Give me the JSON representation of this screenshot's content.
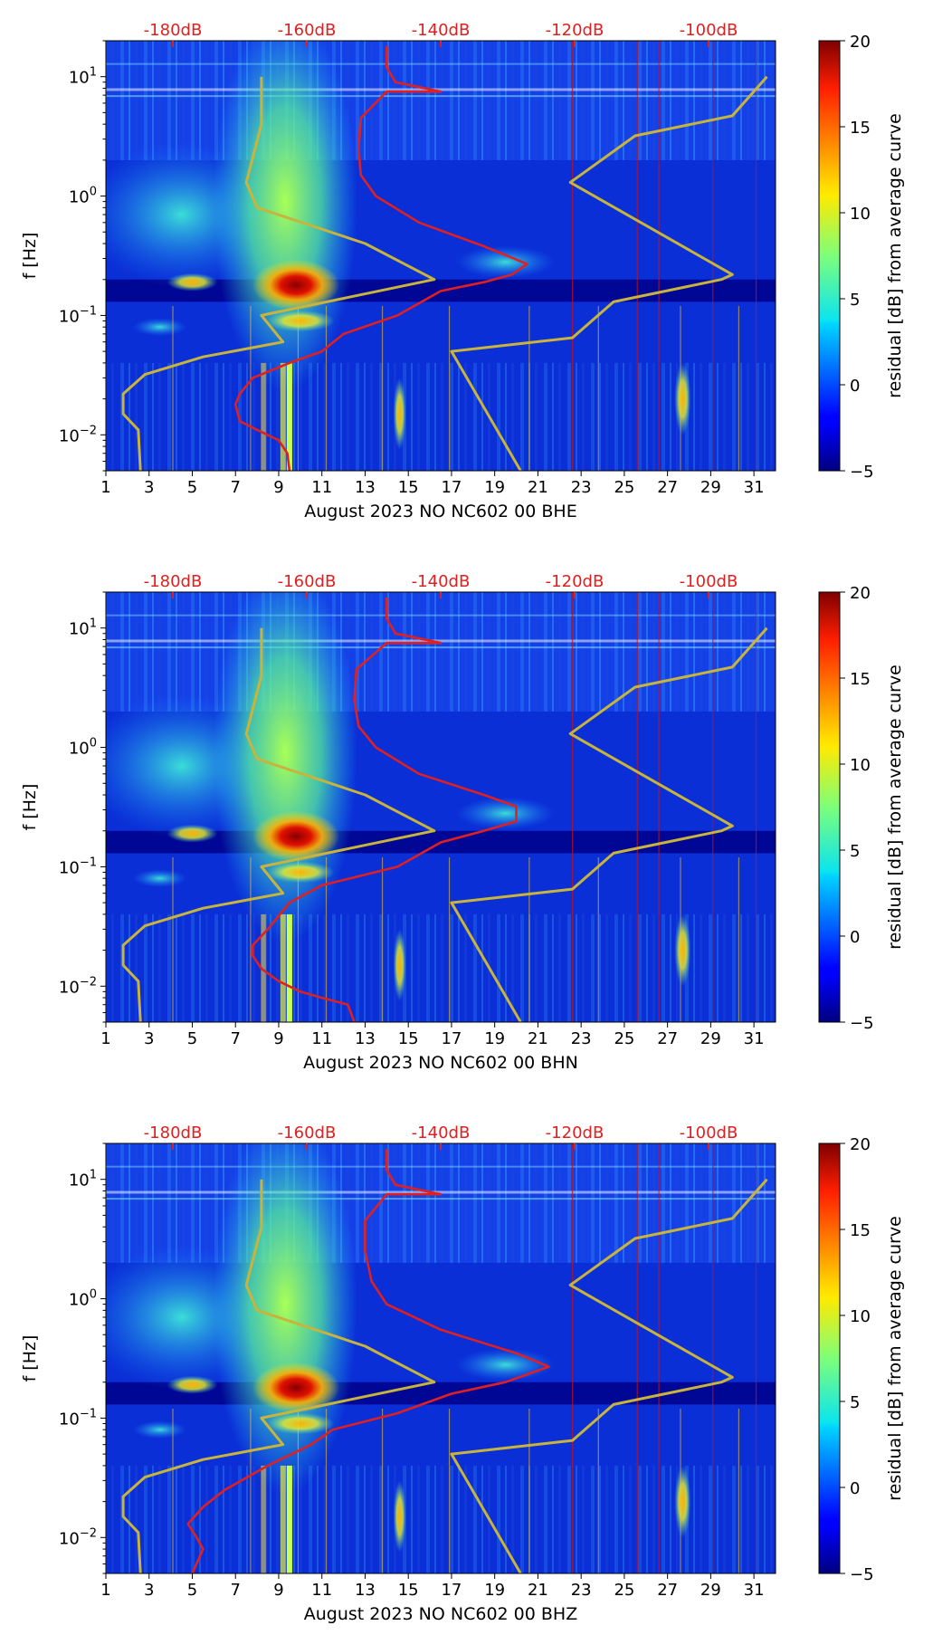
{
  "figure": {
    "top_axis_labels": [
      "-180dB",
      "-160dB",
      "-140dB",
      "-120dB",
      "-100dB"
    ],
    "x_ticks": [
      "1",
      "3",
      "5",
      "7",
      "9",
      "11",
      "13",
      "15",
      "17",
      "19",
      "21",
      "23",
      "25",
      "27",
      "29",
      "31"
    ],
    "colorbar_label": "residual [dB] from average curve",
    "colorbar_ticks": [
      "20",
      "15",
      "10",
      "5",
      "0",
      "−5"
    ],
    "ylabel": "f [Hz]"
  },
  "chart_data": [
    {
      "type": "heatmap",
      "title": "",
      "xlabel": "August 2023 NO NC602 00 BHE",
      "ylabel": "f [Hz]",
      "xlim": [
        1,
        32
      ],
      "ylim": [
        0.005,
        20
      ],
      "yscale": "log",
      "y_ticks": [
        {
          "base": "10",
          "exp": "−2",
          "value": 0.01
        },
        {
          "base": "10",
          "exp": "−1",
          "value": 0.1
        },
        {
          "base": "10",
          "exp": "0",
          "value": 1
        },
        {
          "base": "10",
          "exp": "1",
          "value": 10
        }
      ],
      "top_axis": {
        "labels": [
          "-180dB",
          "-160dB",
          "-140dB",
          "-120dB",
          "-100dB"
        ],
        "values": [
          -180,
          -160,
          -140,
          -120,
          -100
        ]
      },
      "colorbar": {
        "label": "residual [dB] from average curve",
        "range": [
          -5,
          20
        ],
        "ticks": [
          20,
          15,
          10,
          5,
          0,
          -5
        ]
      },
      "series": [
        {
          "name": "NLNM/NHNM model bounds",
          "color": "#c8b43c",
          "points": [
            [
              2.6,
              0.005
            ],
            [
              2.5,
              0.011
            ],
            [
              1.8,
              0.015
            ],
            [
              1.8,
              0.022
            ],
            [
              2.8,
              0.032
            ],
            [
              5.5,
              0.045
            ],
            [
              9.2,
              0.06
            ],
            [
              8.2,
              0.1
            ],
            [
              16.2,
              0.2
            ],
            [
              13,
              0.4
            ],
            [
              8,
              0.8
            ],
            [
              7.5,
              1.3
            ],
            [
              8.2,
              4
            ],
            [
              8.2,
              10
            ]
          ]
        },
        {
          "name": "NLNM/NHNM model bounds (upper)",
          "color": "#c8b43c",
          "points": [
            [
              20.2,
              0.005
            ],
            [
              17,
              0.05
            ],
            [
              22.6,
              0.065
            ],
            [
              24.5,
              0.13
            ],
            [
              29.5,
              0.2
            ],
            [
              30,
              0.22
            ],
            [
              22.5,
              1.3
            ],
            [
              25.5,
              3.2
            ],
            [
              30,
              4.7
            ],
            [
              31.6,
              10
            ]
          ]
        },
        {
          "name": "median PSD [dB]",
          "color": "#e02020",
          "points": [
            [
              9.5,
              0.005
            ],
            [
              9.4,
              0.007
            ],
            [
              9,
              0.009
            ],
            [
              8,
              0.011
            ],
            [
              7.2,
              0.013
            ],
            [
              7,
              0.018
            ],
            [
              7.2,
              0.022
            ],
            [
              7.8,
              0.03
            ],
            [
              9.5,
              0.04
            ],
            [
              11,
              0.05
            ],
            [
              12,
              0.07
            ],
            [
              14.5,
              0.1
            ],
            [
              16.5,
              0.16
            ],
            [
              18.5,
              0.19
            ],
            [
              19.8,
              0.22
            ],
            [
              20.5,
              0.27
            ],
            [
              18.5,
              0.38
            ],
            [
              15.5,
              0.6
            ],
            [
              13.5,
              1.0
            ],
            [
              12.8,
              1.5
            ],
            [
              12.7,
              2.5
            ],
            [
              12.8,
              4.5
            ],
            [
              14,
              7.5
            ],
            [
              16.5,
              7.5
            ],
            [
              14.4,
              9
            ],
            [
              14,
              12
            ],
            [
              14,
              18
            ]
          ]
        }
      ]
    },
    {
      "type": "heatmap",
      "title": "",
      "xlabel": "August 2023 NO NC602 00 BHN",
      "ylabel": "f [Hz]",
      "xlim": [
        1,
        32
      ],
      "ylim": [
        0.005,
        20
      ],
      "yscale": "log",
      "y_ticks": [
        {
          "base": "10",
          "exp": "−2",
          "value": 0.01
        },
        {
          "base": "10",
          "exp": "−1",
          "value": 0.1
        },
        {
          "base": "10",
          "exp": "0",
          "value": 1
        },
        {
          "base": "10",
          "exp": "1",
          "value": 10
        }
      ],
      "top_axis": {
        "labels": [
          "-180dB",
          "-160dB",
          "-140dB",
          "-120dB",
          "-100dB"
        ],
        "values": [
          -180,
          -160,
          -140,
          -120,
          -100
        ]
      },
      "colorbar": {
        "label": "residual [dB] from average curve",
        "range": [
          -5,
          20
        ],
        "ticks": [
          20,
          15,
          10,
          5,
          0,
          -5
        ]
      },
      "series": [
        {
          "name": "NLNM/NHNM model bounds",
          "color": "#c8b43c",
          "points": [
            [
              2.6,
              0.005
            ],
            [
              2.5,
              0.011
            ],
            [
              1.8,
              0.015
            ],
            [
              1.8,
              0.022
            ],
            [
              2.8,
              0.032
            ],
            [
              5.5,
              0.045
            ],
            [
              9.2,
              0.06
            ],
            [
              8.2,
              0.1
            ],
            [
              16.2,
              0.2
            ],
            [
              13,
              0.4
            ],
            [
              8,
              0.8
            ],
            [
              7.5,
              1.3
            ],
            [
              8.2,
              4
            ],
            [
              8.2,
              10
            ]
          ]
        },
        {
          "name": "NLNM/NHNM model bounds (upper)",
          "color": "#c8b43c",
          "points": [
            [
              20.2,
              0.005
            ],
            [
              17,
              0.05
            ],
            [
              22.6,
              0.065
            ],
            [
              24.5,
              0.13
            ],
            [
              29.5,
              0.2
            ],
            [
              30,
              0.22
            ],
            [
              22.5,
              1.3
            ],
            [
              25.5,
              3.2
            ],
            [
              30,
              4.7
            ],
            [
              31.6,
              10
            ]
          ]
        },
        {
          "name": "median PSD [dB]",
          "color": "#e02020",
          "points": [
            [
              12.5,
              0.005
            ],
            [
              12.2,
              0.007
            ],
            [
              11,
              0.008
            ],
            [
              10,
              0.009
            ],
            [
              9,
              0.011
            ],
            [
              8.2,
              0.014
            ],
            [
              7.8,
              0.018
            ],
            [
              7.8,
              0.022
            ],
            [
              8.5,
              0.03
            ],
            [
              9.5,
              0.05
            ],
            [
              11,
              0.07
            ],
            [
              14.5,
              0.1
            ],
            [
              16.5,
              0.16
            ],
            [
              18.5,
              0.2
            ],
            [
              20,
              0.24
            ],
            [
              20,
              0.32
            ],
            [
              18.5,
              0.4
            ],
            [
              15.5,
              0.6
            ],
            [
              13.5,
              1.0
            ],
            [
              12.7,
              1.5
            ],
            [
              12.5,
              2.5
            ],
            [
              12.6,
              4.5
            ],
            [
              14,
              7.5
            ],
            [
              16.5,
              7.5
            ],
            [
              14.4,
              9
            ],
            [
              14,
              12
            ],
            [
              14,
              18
            ]
          ]
        }
      ]
    },
    {
      "type": "heatmap",
      "title": "",
      "xlabel": "August 2023 NO NC602 00 BHZ",
      "ylabel": "f [Hz]",
      "xlim": [
        1,
        32
      ],
      "ylim": [
        0.005,
        20
      ],
      "yscale": "log",
      "y_ticks": [
        {
          "base": "10",
          "exp": "−2",
          "value": 0.01
        },
        {
          "base": "10",
          "exp": "−1",
          "value": 0.1
        },
        {
          "base": "10",
          "exp": "0",
          "value": 1
        },
        {
          "base": "10",
          "exp": "1",
          "value": 10
        }
      ],
      "top_axis": {
        "labels": [
          "-180dB",
          "-160dB",
          "-140dB",
          "-120dB",
          "-100dB"
        ],
        "values": [
          -180,
          -160,
          -140,
          -120,
          -100
        ]
      },
      "colorbar": {
        "label": "residual [dB] from average curve",
        "range": [
          -5,
          20
        ],
        "ticks": [
          20,
          15,
          10,
          5,
          0,
          -5
        ]
      },
      "series": [
        {
          "name": "NLNM/NHNM model bounds",
          "color": "#c8b43c",
          "points": [
            [
              2.6,
              0.005
            ],
            [
              2.5,
              0.011
            ],
            [
              1.8,
              0.015
            ],
            [
              1.8,
              0.022
            ],
            [
              2.8,
              0.032
            ],
            [
              5.5,
              0.045
            ],
            [
              9.2,
              0.06
            ],
            [
              8.2,
              0.1
            ],
            [
              16.2,
              0.2
            ],
            [
              13,
              0.4
            ],
            [
              8,
              0.8
            ],
            [
              7.5,
              1.3
            ],
            [
              8.2,
              4
            ],
            [
              8.2,
              10
            ]
          ]
        },
        {
          "name": "NLNM/NHNM model bounds (upper)",
          "color": "#c8b43c",
          "points": [
            [
              20.2,
              0.005
            ],
            [
              17,
              0.05
            ],
            [
              22.6,
              0.065
            ],
            [
              24.5,
              0.13
            ],
            [
              29.5,
              0.2
            ],
            [
              30,
              0.22
            ],
            [
              22.5,
              1.3
            ],
            [
              25.5,
              3.2
            ],
            [
              30,
              4.7
            ],
            [
              31.6,
              10
            ]
          ]
        },
        {
          "name": "median PSD [dB]",
          "color": "#e02020",
          "points": [
            [
              5,
              0.005
            ],
            [
              5.5,
              0.008
            ],
            [
              5.2,
              0.01
            ],
            [
              4.8,
              0.013
            ],
            [
              5.5,
              0.018
            ],
            [
              6.5,
              0.025
            ],
            [
              8.5,
              0.04
            ],
            [
              10.5,
              0.06
            ],
            [
              11.5,
              0.08
            ],
            [
              14.5,
              0.11
            ],
            [
              17,
              0.16
            ],
            [
              19.5,
              0.2
            ],
            [
              21.5,
              0.27
            ],
            [
              20,
              0.35
            ],
            [
              16.5,
              0.55
            ],
            [
              14,
              0.9
            ],
            [
              13.3,
              1.4
            ],
            [
              13,
              2.5
            ],
            [
              13,
              4.5
            ],
            [
              14,
              7.5
            ],
            [
              16.5,
              7.5
            ],
            [
              14.4,
              9
            ],
            [
              14,
              12
            ],
            [
              14,
              18
            ]
          ]
        }
      ]
    }
  ]
}
